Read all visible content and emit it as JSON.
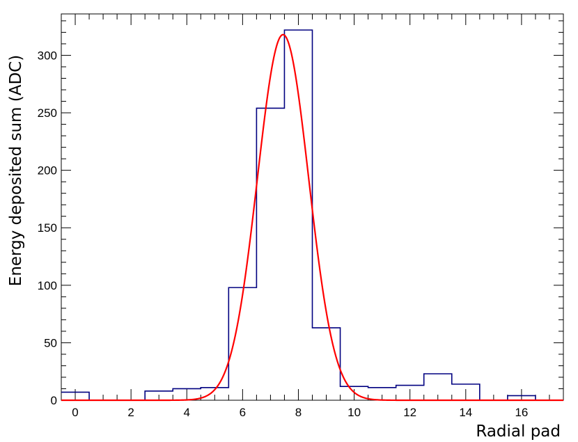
{
  "chart_data": {
    "type": "histogram",
    "title": "",
    "xlabel": "Radial pad",
    "ylabel": "Energy deposited sum (ADC)",
    "xlim": [
      -0.5,
      17.5
    ],
    "ylim": [
      0,
      336
    ],
    "x_ticks": [
      "0",
      "2",
      "4",
      "6",
      "8",
      "10",
      "12",
      "14",
      "16"
    ],
    "y_ticks": [
      "0",
      "50",
      "100",
      "150",
      "200",
      "250",
      "300"
    ],
    "grid": false,
    "legend": "none",
    "series": [
      {
        "kind": "histogram",
        "color": "#000080",
        "bin_centers": [
          0,
          1,
          2,
          3,
          4,
          5,
          6,
          7,
          8,
          9,
          10,
          11,
          12,
          13,
          14,
          15,
          16,
          17
        ],
        "values": [
          7,
          0,
          0,
          8,
          10,
          11,
          98,
          254,
          322,
          63,
          12,
          11,
          13,
          23,
          14,
          0,
          4,
          0
        ]
      },
      {
        "kind": "gaussian-fit",
        "color": "#ff0000",
        "amplitude": 318,
        "mean": 7.45,
        "sigma": 0.92
      }
    ]
  }
}
